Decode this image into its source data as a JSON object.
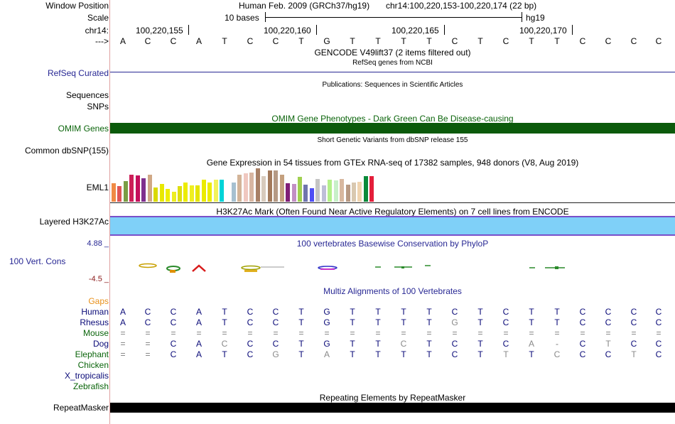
{
  "ruler": {
    "window_position_label": "Window Position",
    "scale_label": "Scale",
    "chr_label": "chr14:",
    "arrow_label": "--->",
    "assembly_text": "Human Feb. 2009 (GRCh37/hg19)",
    "coordinates_text": "chr14:100,220,153-100,220,174 (22 bp)",
    "scale_text": "10 bases",
    "db_text": "hg19",
    "ticks": [
      "100,220,155",
      "100,220,160",
      "100,220,165",
      "100,220,170"
    ]
  },
  "reference_bases": [
    "A",
    "C",
    "C",
    "A",
    "T",
    "C",
    "C",
    "T",
    "G",
    "T",
    "T",
    "T",
    "T",
    "C",
    "T",
    "C",
    "T",
    "T",
    "C",
    "C",
    "C",
    "C"
  ],
  "tracks": {
    "gencode_title": "GENCODE V49lift37 (2 items filtered out)",
    "refseq_subtitle": "RefSeq genes from NCBI",
    "refseq_label": "RefSeq Curated",
    "publications_title": "Publications: Sequences in Scientific Articles",
    "sequences_label": "Sequences",
    "snps_label": "SNPs",
    "omim_title": "OMIM Gene Phenotypes - Dark Green Can Be Disease-causing",
    "omim_label": "OMIM Genes",
    "dbsnp_title": "Short Genetic Variants from dbSNP release 155",
    "dbsnp_label": "Common dbSNP(155)",
    "gtex_title": "Gene Expression in 54 tissues from GTEx RNA-seq of 17382 samples, 948 donors (V8, Aug 2019)",
    "gtex_label": "EML1",
    "h3k27_title": "H3K27Ac Mark (Often Found Near Active Regulatory Elements) on 7 cell lines from ENCODE",
    "h3k27_label": "Layered H3K27Ac",
    "cons_max": "4.88 _",
    "cons_min": "-4.5 _",
    "cons_title": "100 vertebrates Basewise Conservation by PhyloP",
    "cons_label": "100 Vert. Cons",
    "multiz_title": "Multiz Alignments of 100 Vertebrates",
    "rmsk_title": "Repeating Elements by RepeatMasker",
    "rmsk_label": "RepeatMasker"
  },
  "colors": {
    "omim": "#0b5a0b",
    "h3k27": "#7fd0f8",
    "h3k27_border": "#7a4fc9",
    "track_title_blue": "#282894",
    "gaps_orange": "#e8901a",
    "species_green": "#0a640a",
    "species_navy": "#0a0a78",
    "cons_red": "#8b1a1a"
  },
  "gtex_values": [
    {
      "c": "#f08a45",
      "v": 26
    },
    {
      "c": "#e05555",
      "v": 22
    },
    {
      "c": "#7a9d44",
      "v": 29
    },
    {
      "c": "#cc1f58",
      "v": 38
    },
    {
      "c": "#c50f5c",
      "v": 37
    },
    {
      "c": "#7f2f8e",
      "v": 33
    },
    {
      "c": "#d0a885",
      "v": 38
    },
    {
      "c": "#d9d900",
      "v": 20
    },
    {
      "c": "#e8e800",
      "v": 25
    },
    {
      "c": "#eeee00",
      "v": 18
    },
    {
      "c": "#eded22",
      "v": 14
    },
    {
      "c": "#dede10",
      "v": 22
    },
    {
      "c": "#ecec00",
      "v": 27
    },
    {
      "c": "#efef20",
      "v": 23
    },
    {
      "c": "#e5e500",
      "v": 23
    },
    {
      "c": "#ebeb00",
      "v": 31
    },
    {
      "c": "#ecec00",
      "v": 27
    },
    {
      "c": "#f2f25a",
      "v": 31
    },
    {
      "c": "#00d4d8",
      "v": 31
    },
    {
      "c": "#ffffff",
      "v": 0
    },
    {
      "c": "#a6c0d0",
      "v": 27
    },
    {
      "c": "#d3b498",
      "v": 38
    },
    {
      "c": "#f0c8c0",
      "v": 40
    },
    {
      "c": "#d8b6a2",
      "v": 41
    },
    {
      "c": "#a88066",
      "v": 47
    },
    {
      "c": "#d8cbbd",
      "v": 36
    },
    {
      "c": "#a37a5c",
      "v": 44
    },
    {
      "c": "#b59a85",
      "v": 44
    },
    {
      "c": "#c4a07e",
      "v": 38
    },
    {
      "c": "#7f1f77",
      "v": 26
    },
    {
      "c": "#c28fc4",
      "v": 25
    },
    {
      "c": "#a0d050",
      "v": 35
    },
    {
      "c": "#6f75ad",
      "v": 24
    },
    {
      "c": "#4f4ff5",
      "v": 19
    },
    {
      "c": "#c4c4c4",
      "v": 32
    },
    {
      "c": "#bebed8",
      "v": 23
    },
    {
      "c": "#b4f08a",
      "v": 31
    },
    {
      "c": "#c8f0c8",
      "v": 30
    },
    {
      "c": "#d8b8a0",
      "v": 32
    },
    {
      "c": "#b89a84",
      "v": 24
    },
    {
      "c": "#d9c8b0",
      "v": 27
    },
    {
      "c": "#f0d4b0",
      "v": 28
    },
    {
      "c": "#0a8a3a",
      "v": 36
    },
    {
      "c": "#e41e3a",
      "v": 36
    }
  ],
  "multiz": {
    "gaps_label": "Gaps",
    "species": [
      {
        "name": "Human",
        "class": "navy",
        "bases": [
          "A",
          "C",
          "C",
          "A",
          "T",
          "C",
          "C",
          "T",
          "G",
          "T",
          "T",
          "T",
          "T",
          "C",
          "T",
          "C",
          "T",
          "T",
          "C",
          "C",
          "C",
          "C"
        ]
      },
      {
        "name": "Rhesus",
        "class": "navy",
        "bases": [
          "A",
          "C",
          "C",
          "A",
          "T",
          "C",
          "C",
          "T",
          "G",
          "T",
          "T",
          "T",
          "T",
          "G",
          "T",
          "C",
          "T",
          "T",
          "C",
          "C",
          "C",
          "C"
        ]
      },
      {
        "name": "Mouse",
        "class": "green",
        "bases": [
          "=",
          "=",
          "=",
          "=",
          "=",
          "=",
          "=",
          "=",
          "=",
          "=",
          "=",
          "=",
          "=",
          "=",
          "=",
          "=",
          "=",
          "=",
          "=",
          "=",
          "=",
          "="
        ]
      },
      {
        "name": "Dog",
        "class": "navy",
        "bases": [
          "=",
          "=",
          "C",
          "A",
          "C",
          "C",
          "C",
          "T",
          "G",
          "T",
          "T",
          "C",
          "T",
          "C",
          "T",
          "C",
          "A",
          "-",
          "C",
          "T",
          "C",
          "C"
        ]
      },
      {
        "name": "Elephant",
        "class": "green",
        "bases": [
          "=",
          "=",
          "C",
          "A",
          "T",
          "C",
          "G",
          "T",
          "A",
          "T",
          "T",
          "T",
          "T",
          "C",
          "T",
          "T",
          "T",
          "C",
          "C",
          "C",
          "T",
          "C"
        ]
      },
      {
        "name": "Chicken",
        "class": "green",
        "bases": []
      },
      {
        "name": "X_tropicalis",
        "class": "navy",
        "bases": []
      },
      {
        "name": "Zebrafish",
        "class": "green",
        "bases": []
      }
    ]
  }
}
